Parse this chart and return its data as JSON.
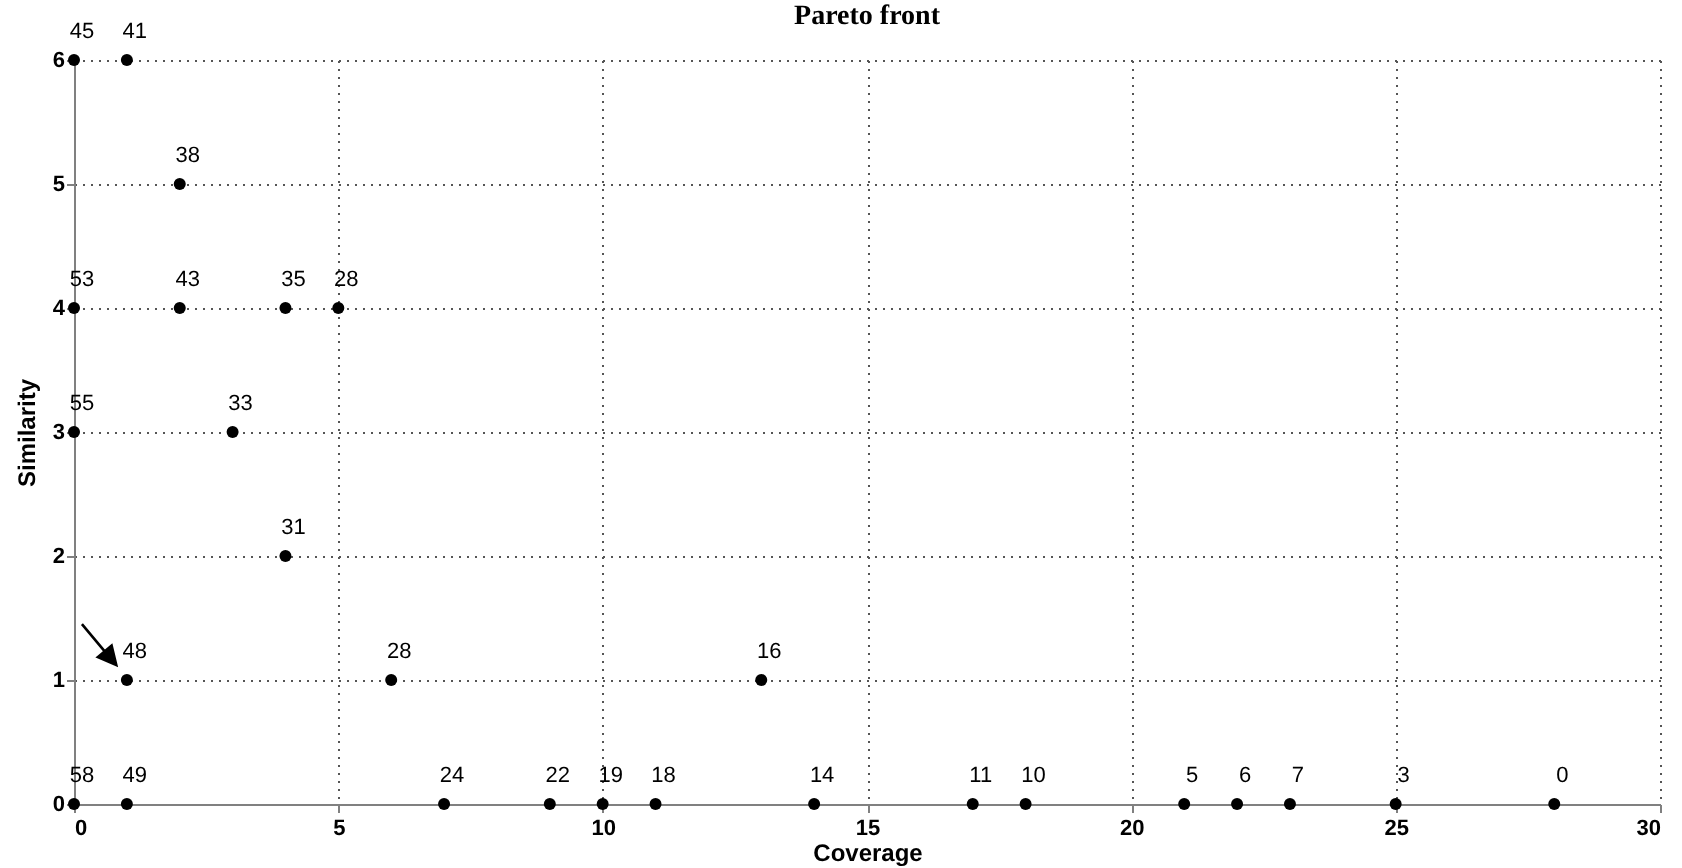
{
  "chart_data": {
    "type": "scatter",
    "title": "Pareto front",
    "xlabel": "Coverage",
    "ylabel": "Similarity",
    "x": [
      0,
      1,
      2,
      0,
      2,
      4,
      5,
      0,
      3,
      4,
      1,
      6,
      13,
      0,
      1,
      7,
      9,
      10,
      11,
      14,
      17,
      18,
      21,
      22,
      23,
      25,
      28
    ],
    "series": [
      {
        "color": "#000000",
        "values": [
          6,
          6,
          5,
          4,
          4,
          4,
          4,
          3,
          3,
          2,
          1,
          1,
          1,
          0,
          0,
          0,
          0,
          0,
          0,
          0,
          0,
          0,
          0,
          0,
          0,
          0,
          0
        ]
      }
    ],
    "annotations": [
      {
        "text": "45",
        "x": 0,
        "y": 6
      },
      {
        "text": "41",
        "x": 1,
        "y": 6
      },
      {
        "text": "38",
        "x": 2,
        "y": 5
      },
      {
        "text": "53",
        "x": 0,
        "y": 4
      },
      {
        "text": "43",
        "x": 2,
        "y": 4
      },
      {
        "text": "35",
        "x": 4,
        "y": 4
      },
      {
        "text": "28",
        "x": 5,
        "y": 4
      },
      {
        "text": "55",
        "x": 0,
        "y": 3
      },
      {
        "text": "33",
        "x": 3,
        "y": 3
      },
      {
        "text": "31",
        "x": 4,
        "y": 2
      },
      {
        "text": "48",
        "x": 1,
        "y": 1
      },
      {
        "text": "28",
        "x": 6,
        "y": 1
      },
      {
        "text": "16",
        "x": 13,
        "y": 1
      },
      {
        "text": "58",
        "x": 0,
        "y": 0
      },
      {
        "text": "49",
        "x": 1,
        "y": 0
      },
      {
        "text": "24",
        "x": 7,
        "y": 0
      },
      {
        "text": "22",
        "x": 9,
        "y": 0
      },
      {
        "text": "19",
        "x": 10,
        "y": 0
      },
      {
        "text": "18",
        "x": 11,
        "y": 0
      },
      {
        "text": "14",
        "x": 14,
        "y": 0
      },
      {
        "text": "11",
        "x": 17,
        "y": 0
      },
      {
        "text": "10",
        "x": 18,
        "y": 0
      },
      {
        "text": "5",
        "x": 21,
        "y": 0
      },
      {
        "text": "6",
        "x": 22,
        "y": 0
      },
      {
        "text": "7",
        "x": 23,
        "y": 0
      },
      {
        "text": "3",
        "x": 25,
        "y": 0
      },
      {
        "text": "0",
        "x": 28,
        "y": 0
      }
    ],
    "xlim": [
      0,
      30
    ],
    "xticks": [
      0,
      5,
      10,
      15,
      20,
      25,
      30
    ],
    "ylim": [
      0,
      6
    ],
    "yticks": [
      0,
      1,
      2,
      3,
      4,
      5,
      6
    ],
    "grid": true,
    "marker": "circle",
    "legend": false
  }
}
